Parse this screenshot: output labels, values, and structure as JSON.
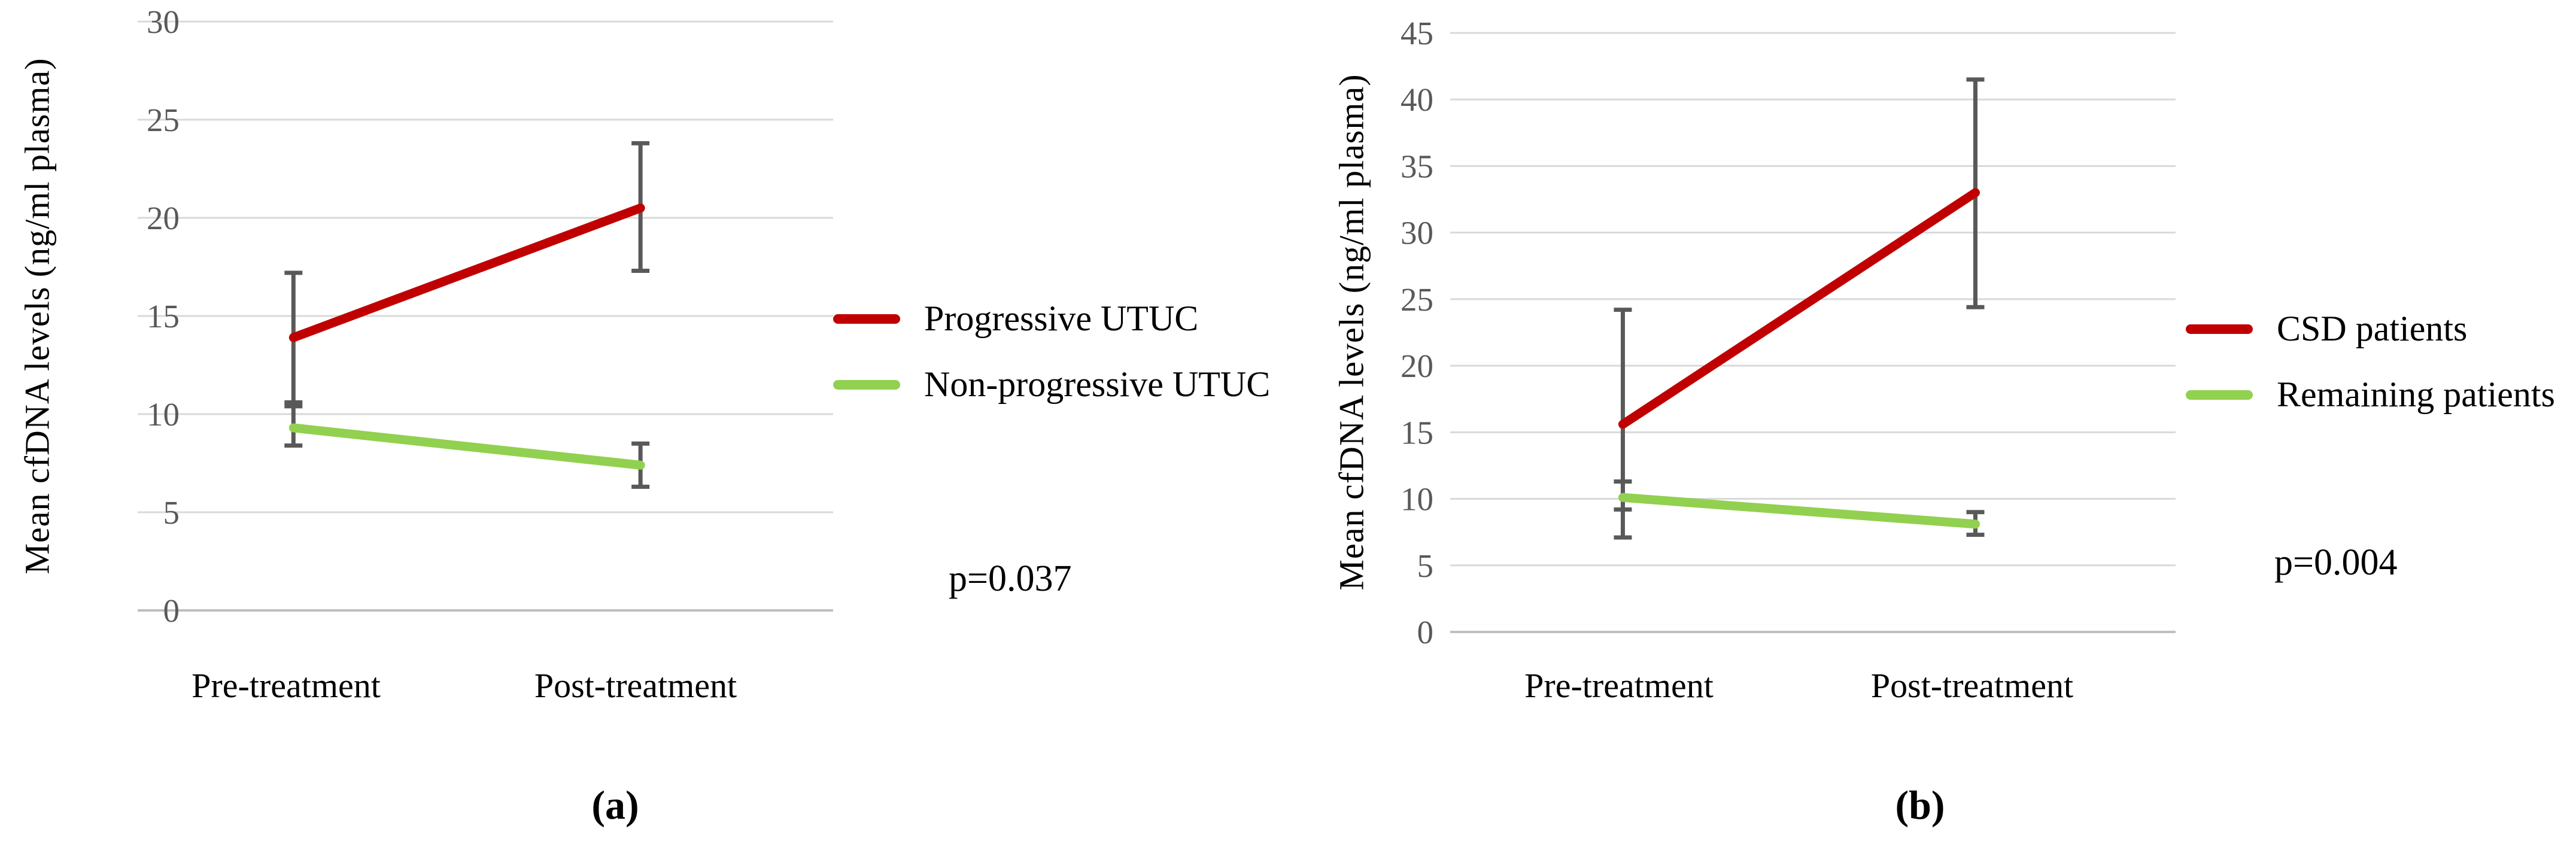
{
  "colors": {
    "red_series": "#C00000",
    "green_series": "#92D050",
    "error_bar": "#595959",
    "gridline": "#D9D9D9",
    "axis_line": "#BFBFBF",
    "tick_text": "#595959",
    "text": "#000000"
  },
  "chart_data": [
    {
      "panel": "a",
      "type": "line",
      "categories": [
        "Pre-treatment",
        "Post-treatment"
      ],
      "ylabel": "Mean cfDNA levels (ng/ml plasma)",
      "ylim": [
        0,
        30
      ],
      "ytick_step": 5,
      "grid": true,
      "legend_position": "right",
      "series": [
        {
          "name": "Progressive UTUC",
          "color": "#C00000",
          "values": [
            13.9,
            20.5
          ],
          "err_low": [
            10.6,
            17.3
          ],
          "err_high": [
            17.2,
            23.8
          ]
        },
        {
          "name": "Non-progressive UTUC",
          "color": "#92D050",
          "values": [
            9.3,
            7.4
          ],
          "err_low": [
            8.4,
            6.3
          ],
          "err_high": [
            10.4,
            8.5
          ]
        }
      ],
      "annotation": "p=0.037",
      "caption": "(a)"
    },
    {
      "panel": "b",
      "type": "line",
      "categories": [
        "Pre-treatment",
        "Post-treatment"
      ],
      "ylabel": "Mean cfDNA levels (ng/ml plasma)",
      "ylim": [
        0,
        45
      ],
      "ytick_step": 5,
      "grid": true,
      "legend_position": "right",
      "series": [
        {
          "name": "CSD patients",
          "color": "#C00000",
          "values": [
            15.6,
            33.0
          ],
          "err_low": [
            7.1,
            24.4
          ],
          "err_high": [
            24.2,
            41.5
          ]
        },
        {
          "name": "Remaining patients",
          "color": "#92D050",
          "values": [
            10.1,
            8.1
          ],
          "err_low": [
            9.2,
            7.3
          ],
          "err_high": [
            11.3,
            9.0
          ]
        }
      ],
      "annotation": "p=0.004",
      "caption": "(b)"
    }
  ]
}
